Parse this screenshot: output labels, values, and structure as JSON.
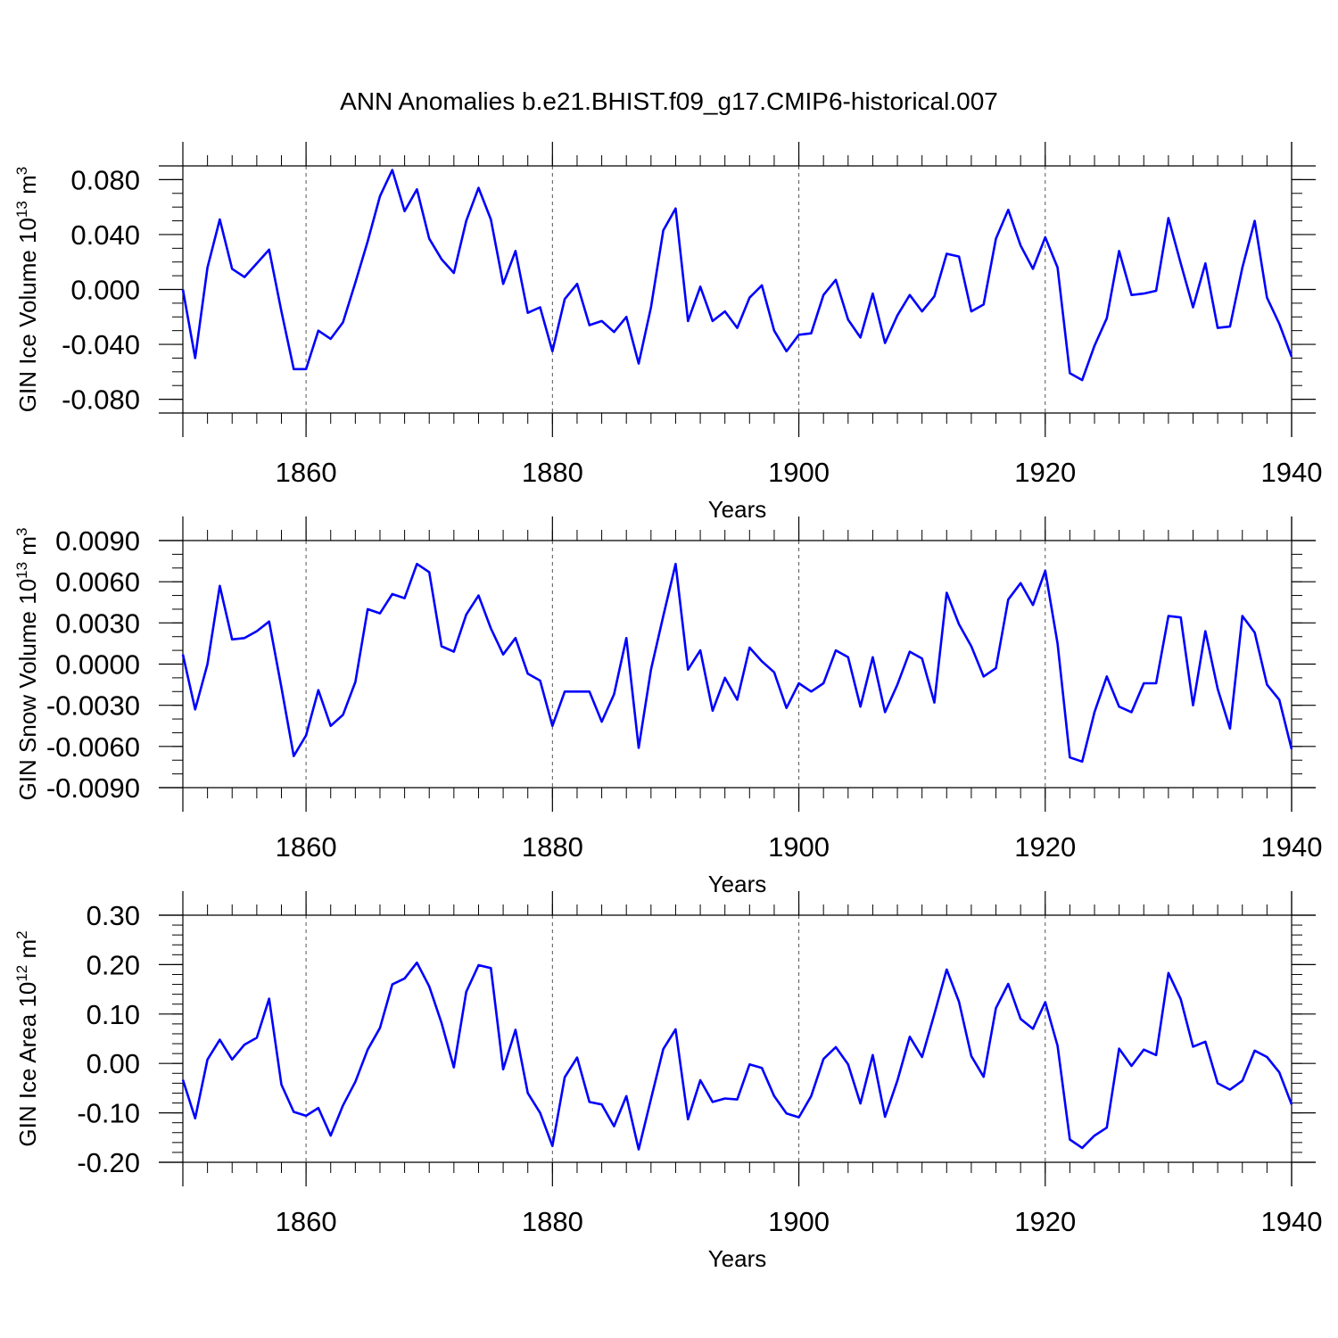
{
  "title": "ANN Anomalies b.e21.BHIST.f09_g17.CMIP6-historical.007",
  "line_color": "#0000ff",
  "chart_data": [
    {
      "type": "line",
      "ylabel_main": "GIN Ice Volume 10",
      "ylabel_exp": "13",
      "ylabel_unit": " m",
      "ylabel_unit_exp": "3",
      "xlabel": "Years",
      "xlim": [
        1850,
        1940
      ],
      "ylim": [
        -0.09,
        0.09
      ],
      "yticks": [
        -0.08,
        -0.04,
        0.0,
        0.04,
        0.08
      ],
      "yminor": 0.01,
      "ytick_labels": [
        "-0.080",
        "-0.040",
        "0.000",
        "0.040",
        "0.080"
      ],
      "xticks": [
        1860,
        1880,
        1900,
        1920,
        1940
      ],
      "xtick_labels": [
        "1860",
        "1880",
        "1900",
        "1920",
        "1940"
      ],
      "grid": "dashed vertical at major x ticks",
      "x_start": 1850,
      "values": [
        0.0,
        -0.05,
        0.016,
        0.051,
        0.015,
        0.009,
        0.019,
        0.029,
        -0.016,
        -0.058,
        -0.058,
        -0.03,
        -0.036,
        -0.024,
        0.005,
        0.035,
        0.068,
        0.087,
        0.057,
        0.073,
        0.037,
        0.022,
        0.012,
        0.05,
        0.074,
        0.051,
        0.004,
        0.028,
        -0.017,
        -0.013,
        -0.045,
        -0.007,
        0.004,
        -0.026,
        -0.023,
        -0.031,
        -0.02,
        -0.054,
        -0.013,
        0.043,
        0.059,
        -0.023,
        0.002,
        -0.023,
        -0.016,
        -0.028,
        -0.006,
        0.003,
        -0.03,
        -0.045,
        -0.033,
        -0.032,
        -0.004,
        0.007,
        -0.022,
        -0.035,
        -0.003,
        -0.039,
        -0.019,
        -0.004,
        -0.016,
        -0.005,
        0.026,
        0.024,
        -0.016,
        -0.011,
        0.037,
        0.058,
        0.032,
        0.015,
        0.038,
        0.016,
        -0.061,
        -0.066,
        -0.041,
        -0.021,
        0.028,
        -0.004,
        -0.003,
        -0.001,
        0.052,
        0.019,
        -0.013,
        0.019,
        -0.028,
        -0.027,
        0.016,
        0.05,
        -0.006,
        -0.025,
        -0.049
      ]
    },
    {
      "type": "line",
      "ylabel_main": "GIN Snow Volume 10",
      "ylabel_exp": "13",
      "ylabel_unit": " m",
      "ylabel_unit_exp": "3",
      "xlabel": "Years",
      "xlim": [
        1850,
        1940
      ],
      "ylim": [
        -0.009,
        0.009
      ],
      "yticks": [
        -0.009,
        -0.006,
        -0.003,
        0.0,
        0.003,
        0.006,
        0.009
      ],
      "yminor": 0.001,
      "ytick_labels": [
        "-0.0090",
        "-0.0060",
        "-0.0030",
        "0.0000",
        "0.0030",
        "0.0060",
        "0.0090"
      ],
      "xticks": [
        1860,
        1880,
        1900,
        1920,
        1940
      ],
      "xtick_labels": [
        "1860",
        "1880",
        "1900",
        "1920",
        "1940"
      ],
      "grid": "dashed vertical at major x ticks",
      "x_start": 1850,
      "values": [
        0.0007,
        -0.0033,
        0.0,
        0.0057,
        0.0018,
        0.0019,
        0.0024,
        0.0031,
        -0.0017,
        -0.0067,
        -0.0052,
        -0.0019,
        -0.0045,
        -0.0037,
        -0.0013,
        0.004,
        0.0037,
        0.0051,
        0.0048,
        0.0073,
        0.0067,
        0.0013,
        0.0009,
        0.0036,
        0.005,
        0.0026,
        0.0007,
        0.0019,
        -0.0007,
        -0.0012,
        -0.0045,
        -0.002,
        -0.002,
        -0.002,
        -0.0042,
        -0.0022,
        0.0019,
        -0.0061,
        -0.0004,
        0.0035,
        0.0073,
        -0.0004,
        0.001,
        -0.0034,
        -0.001,
        -0.0026,
        0.0012,
        0.0002,
        -0.0006,
        -0.0032,
        -0.0014,
        -0.002,
        -0.0014,
        0.001,
        0.0005,
        -0.0031,
        0.0005,
        -0.0035,
        -0.0015,
        0.0009,
        0.0004,
        -0.0028,
        0.0052,
        0.0029,
        0.0013,
        -0.0009,
        -0.0003,
        0.0047,
        0.0059,
        0.0043,
        0.0068,
        0.0015,
        -0.0068,
        -0.0071,
        -0.0035,
        -0.0009,
        -0.0031,
        -0.0035,
        -0.0014,
        -0.0014,
        0.0035,
        0.0034,
        -0.003,
        0.0024,
        -0.0018,
        -0.0047,
        0.0035,
        0.0023,
        -0.0015,
        -0.0026,
        -0.0062
      ]
    },
    {
      "type": "line",
      "ylabel_main": "GIN Ice Area 10",
      "ylabel_exp": "12",
      "ylabel_unit": " m",
      "ylabel_unit_exp": "2",
      "xlabel": "Years",
      "xlim": [
        1850,
        1940
      ],
      "ylim": [
        -0.2,
        0.3
      ],
      "yticks": [
        -0.2,
        -0.1,
        0.0,
        0.1,
        0.2,
        0.3
      ],
      "yminor": 0.02,
      "ytick_labels": [
        "-0.20",
        "-0.10",
        "0.00",
        "0.10",
        "0.20",
        "0.30"
      ],
      "xticks": [
        1860,
        1880,
        1900,
        1920,
        1940
      ],
      "xtick_labels": [
        "1860",
        "1880",
        "1900",
        "1920",
        "1940"
      ],
      "grid": "dashed vertical at major x ticks",
      "x_start": 1850,
      "values": [
        -0.033,
        -0.111,
        0.008,
        0.048,
        0.008,
        0.038,
        0.052,
        0.131,
        -0.043,
        -0.098,
        -0.106,
        -0.09,
        -0.146,
        -0.085,
        -0.037,
        0.028,
        0.072,
        0.16,
        0.172,
        0.204,
        0.156,
        0.082,
        -0.008,
        0.145,
        0.199,
        0.193,
        -0.012,
        0.068,
        -0.06,
        -0.1,
        -0.167,
        -0.028,
        0.012,
        -0.078,
        -0.083,
        -0.127,
        -0.066,
        -0.174,
        -0.072,
        0.029,
        0.069,
        -0.113,
        -0.034,
        -0.078,
        -0.071,
        -0.073,
        -0.002,
        -0.009,
        -0.066,
        -0.101,
        -0.109,
        -0.066,
        0.009,
        0.033,
        -0.002,
        -0.081,
        0.017,
        -0.108,
        -0.035,
        0.054,
        0.013,
        0.1,
        0.19,
        0.125,
        0.015,
        -0.027,
        0.112,
        0.161,
        0.09,
        0.07,
        0.124,
        0.036,
        -0.154,
        -0.171,
        -0.146,
        -0.13,
        0.03,
        -0.005,
        0.028,
        0.017,
        0.183,
        0.13,
        0.034,
        0.044,
        -0.04,
        -0.053,
        -0.035,
        0.026,
        0.013,
        -0.018,
        -0.083
      ]
    }
  ]
}
